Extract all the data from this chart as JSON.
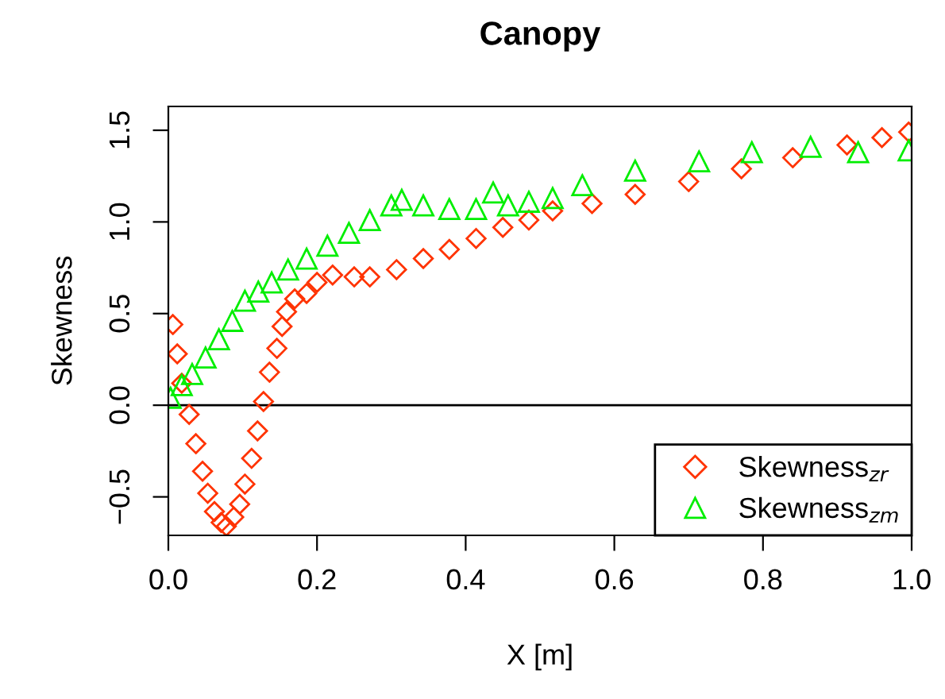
{
  "chart_data": {
    "type": "scatter",
    "title": "Canopy",
    "xlabel": "X [m]",
    "ylabel": "Skewness",
    "xlim": [
      0,
      1
    ],
    "ylim": [
      -0.71,
      1.63
    ],
    "xticks": [
      {
        "value": 0,
        "label": "0.0"
      },
      {
        "value": 0.2,
        "label": "0.2"
      },
      {
        "value": 0.4,
        "label": "0.4"
      },
      {
        "value": 0.6,
        "label": "0.6"
      },
      {
        "value": 0.8,
        "label": "0.8"
      },
      {
        "value": 1,
        "label": "1.0"
      }
    ],
    "yticks": [
      {
        "value": -0.5,
        "label": "−0.5"
      },
      {
        "value": 0,
        "label": "0.0"
      },
      {
        "value": 0.5,
        "label": "0.5"
      },
      {
        "value": 1,
        "label": "1.0"
      },
      {
        "value": 1.5,
        "label": "1.5"
      }
    ],
    "grid": false,
    "legend": "bottom right",
    "ref_lines": [
      {
        "axis": "y",
        "value": 0,
        "color": "#000000",
        "line_style": "solid"
      }
    ],
    "series": [
      {
        "name": "Skewness$_{zr}$",
        "color": "#ff3300",
        "marker": "diamond",
        "x": [
          0.006,
          0.012,
          0.018,
          0.028,
          0.037,
          0.046,
          0.053,
          0.062,
          0.071,
          0.078,
          0.088,
          0.096,
          0.103,
          0.112,
          0.12,
          0.128,
          0.136,
          0.146,
          0.153,
          0.159,
          0.17,
          0.186,
          0.2,
          0.221,
          0.25,
          0.271,
          0.307,
          0.343,
          0.378,
          0.414,
          0.45,
          0.485,
          0.517,
          0.57,
          0.628,
          0.7,
          0.771,
          0.84,
          0.913,
          0.96,
          0.996
        ],
        "values": [
          0.44,
          0.28,
          0.12,
          -0.05,
          -0.21,
          -0.36,
          -0.48,
          -0.58,
          -0.64,
          -0.66,
          -0.61,
          -0.54,
          -0.43,
          -0.29,
          -0.14,
          0.02,
          0.18,
          0.31,
          0.43,
          0.51,
          0.58,
          0.61,
          0.67,
          0.71,
          0.7,
          0.7,
          0.74,
          0.8,
          0.85,
          0.91,
          0.97,
          1.01,
          1.06,
          1.1,
          1.15,
          1.22,
          1.29,
          1.35,
          1.42,
          1.46,
          1.49
        ]
      },
      {
        "name": "Skewness$_{zm}$",
        "color": "#00ee00",
        "marker": "triangle",
        "x": [
          0.003,
          0.018,
          0.032,
          0.05,
          0.068,
          0.086,
          0.103,
          0.121,
          0.139,
          0.161,
          0.186,
          0.214,
          0.243,
          0.271,
          0.3,
          0.314,
          0.343,
          0.378,
          0.414,
          0.437,
          0.457,
          0.485,
          0.517,
          0.557,
          0.628,
          0.714,
          0.785,
          0.864,
          0.928,
          0.996
        ],
        "values": [
          0.04,
          0.11,
          0.17,
          0.26,
          0.36,
          0.46,
          0.57,
          0.62,
          0.67,
          0.74,
          0.8,
          0.87,
          0.94,
          1.01,
          1.09,
          1.12,
          1.09,
          1.07,
          1.07,
          1.16,
          1.09,
          1.11,
          1.13,
          1.2,
          1.28,
          1.33,
          1.38,
          1.41,
          1.38,
          1.39
        ]
      }
    ]
  }
}
